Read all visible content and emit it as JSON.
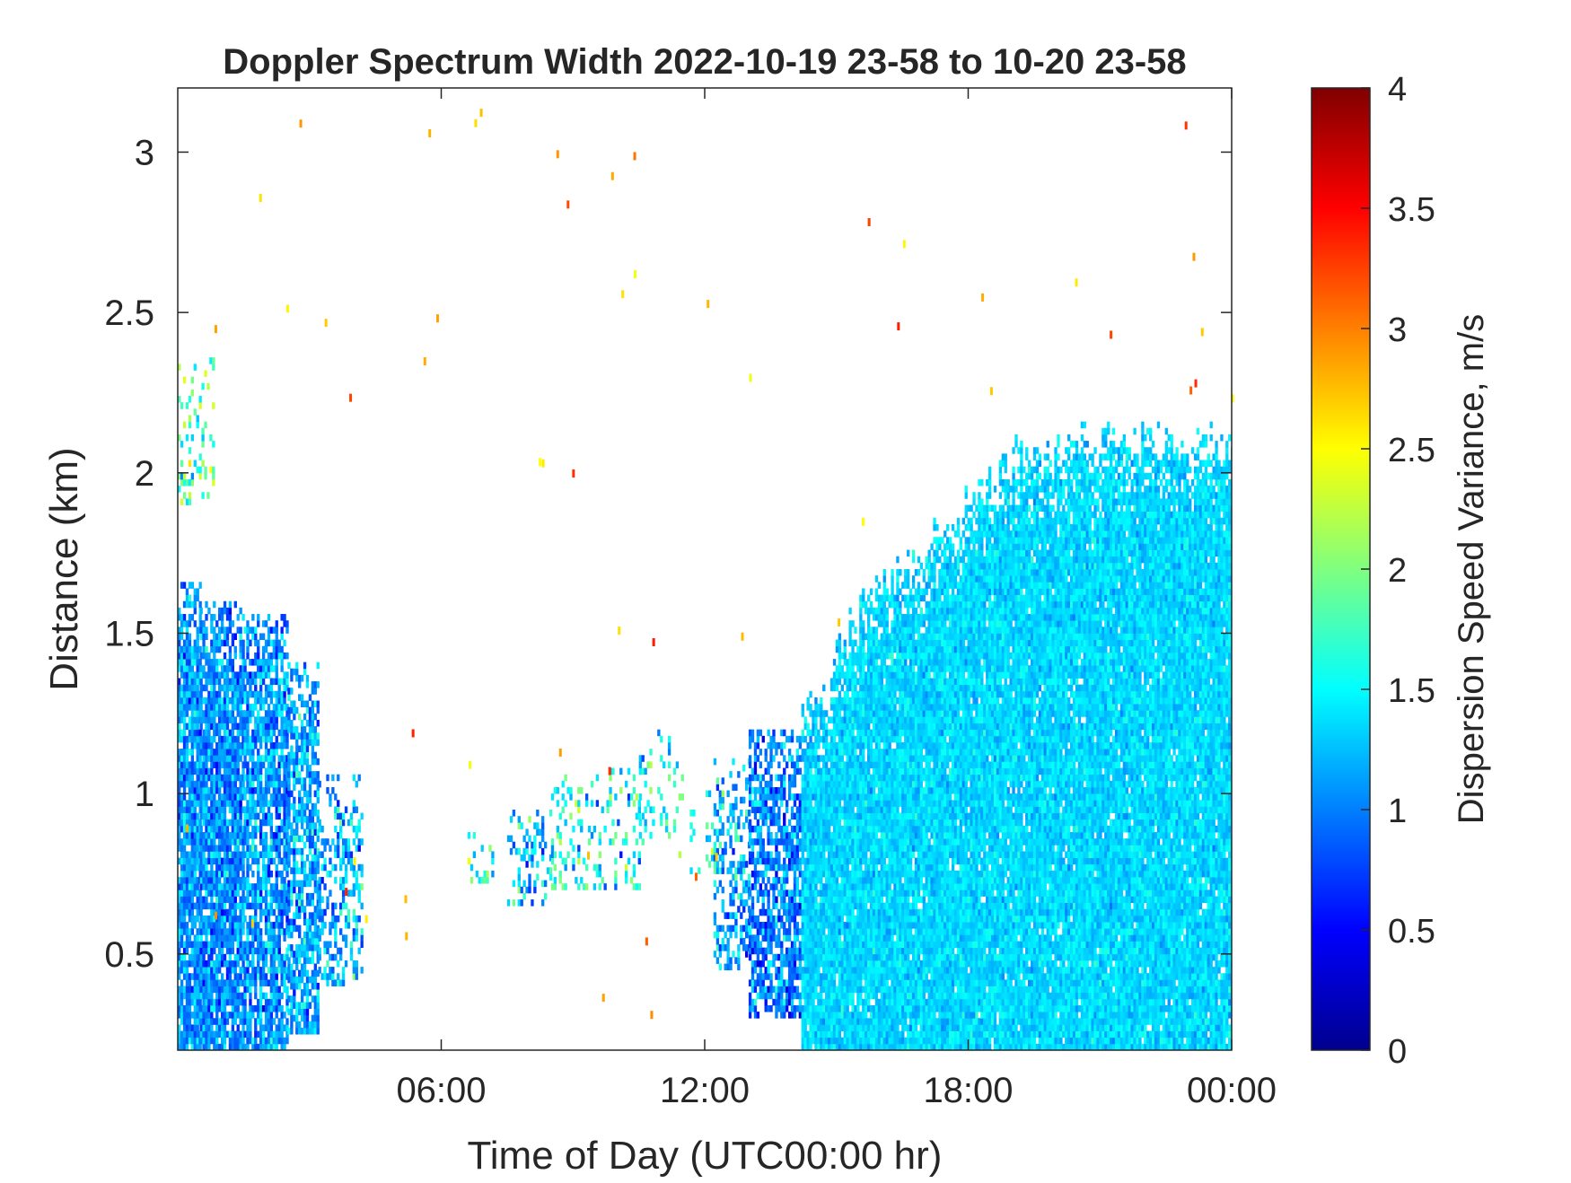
{
  "chart_data": {
    "type": "heatmap",
    "title": "Doppler Spectrum Width 2022-10-19 23-58 to 10-20 23-58",
    "xlabel": "Time of Day (UTC00:00 hr)",
    "ylabel": "Distance (km)",
    "colorbar_label": "Dispersion Speed Variance, m/s",
    "colormap": "jet",
    "xlim_hours": [
      0,
      24
    ],
    "ylim": [
      0.2,
      3.2
    ],
    "clim": [
      0,
      4
    ],
    "x_ticks": [
      {
        "hour": 6,
        "label": "06:00"
      },
      {
        "hour": 12,
        "label": "12:00"
      },
      {
        "hour": 18,
        "label": "18:00"
      },
      {
        "hour": 24,
        "label": "00:00"
      }
    ],
    "y_ticks": [
      {
        "value": 0.5,
        "label": "0.5"
      },
      {
        "value": 1,
        "label": "1"
      },
      {
        "value": 1.5,
        "label": "1.5"
      },
      {
        "value": 2,
        "label": "2"
      },
      {
        "value": 2.5,
        "label": "2.5"
      },
      {
        "value": 3,
        "label": "3"
      }
    ],
    "colorbar_ticks": [
      {
        "value": 0,
        "label": "0"
      },
      {
        "value": 0.5,
        "label": "0.5"
      },
      {
        "value": 1,
        "label": "1"
      },
      {
        "value": 1.5,
        "label": "1.5"
      },
      {
        "value": 2,
        "label": "2"
      },
      {
        "value": 2.5,
        "label": "2.5"
      },
      {
        "value": 3,
        "label": "3"
      },
      {
        "value": 3.5,
        "label": "3.5"
      },
      {
        "value": 4,
        "label": "4"
      }
    ],
    "regions": [
      {
        "hours": [
          0.0,
          0.5
        ],
        "dist": [
          0.2,
          1.65
        ],
        "mean": 1.1,
        "spread": 0.35,
        "density": 0.9
      },
      {
        "hours": [
          0.5,
          1.5
        ],
        "dist": [
          0.2,
          1.6
        ],
        "mean": 1.05,
        "spread": 0.35,
        "density": 0.88
      },
      {
        "hours": [
          1.5,
          2.5
        ],
        "dist": [
          0.2,
          1.55
        ],
        "mean": 1.1,
        "spread": 0.4,
        "density": 0.8
      },
      {
        "hours": [
          2.5,
          3.2
        ],
        "dist": [
          0.25,
          1.4
        ],
        "mean": 1.15,
        "spread": 0.4,
        "density": 0.7
      },
      {
        "hours": [
          3.2,
          4.2
        ],
        "dist": [
          0.4,
          1.05
        ],
        "mean": 1.2,
        "spread": 0.45,
        "density": 0.4
      },
      {
        "hours": [
          0.0,
          0.8
        ],
        "dist": [
          1.9,
          2.35
        ],
        "mean": 1.8,
        "spread": 0.5,
        "density": 0.2
      },
      {
        "hours": [
          6.6,
          7.2
        ],
        "dist": [
          0.72,
          0.88
        ],
        "mean": 1.6,
        "spread": 0.5,
        "density": 0.3
      },
      {
        "hours": [
          7.5,
          8.5
        ],
        "dist": [
          0.65,
          0.95
        ],
        "mean": 1.3,
        "spread": 0.5,
        "density": 0.35
      },
      {
        "hours": [
          8.5,
          10.5
        ],
        "dist": [
          0.7,
          1.08
        ],
        "mean": 1.5,
        "spread": 0.55,
        "density": 0.25
      },
      {
        "hours": [
          10.5,
          11.5
        ],
        "dist": [
          0.8,
          1.2
        ],
        "mean": 1.6,
        "spread": 0.5,
        "density": 0.2
      },
      {
        "hours": [
          11.6,
          12.2
        ],
        "dist": [
          0.75,
          1.0
        ],
        "mean": 1.5,
        "spread": 0.5,
        "density": 0.2
      },
      {
        "hours": [
          12.2,
          13.0
        ],
        "dist": [
          0.45,
          1.1
        ],
        "mean": 1.2,
        "spread": 0.45,
        "density": 0.45
      },
      {
        "hours": [
          13.0,
          14.2
        ],
        "dist": [
          0.3,
          1.2
        ],
        "mean": 1.0,
        "spread": 0.4,
        "density": 0.7
      },
      {
        "hours": [
          14.2,
          24.0
        ],
        "dist": [
          0.2,
          2.15
        ],
        "mean": 1.35,
        "spread": 0.18,
        "density": 0.97
      }
    ],
    "upper_boundary_hours": [
      14.2,
      14.8,
      15.2,
      15.6,
      16.0,
      16.5,
      17.0,
      17.5,
      18.0,
      18.5,
      19.0,
      20.0,
      21.0,
      22.0,
      23.0,
      24.0
    ],
    "upper_boundary_km": [
      1.25,
      1.35,
      1.5,
      1.6,
      1.65,
      1.7,
      1.75,
      1.85,
      1.9,
      2.0,
      2.05,
      2.1,
      2.1,
      2.1,
      2.1,
      2.12
    ]
  }
}
